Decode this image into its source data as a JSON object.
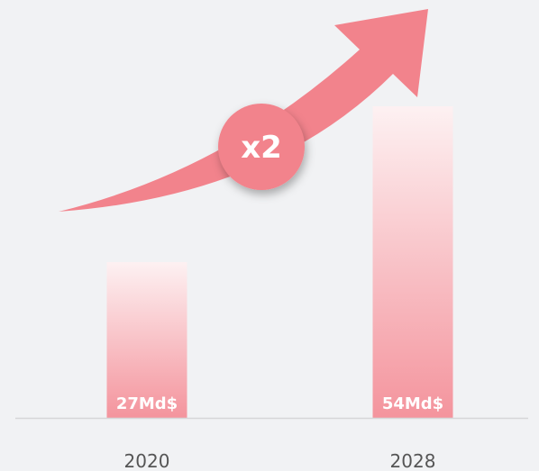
{
  "chart_data": {
    "type": "bar",
    "categories": [
      "2020",
      "2028"
    ],
    "values": [
      27,
      54
    ],
    "value_labels": [
      "27Md$",
      "54Md$"
    ],
    "annotation": "x2"
  }
}
